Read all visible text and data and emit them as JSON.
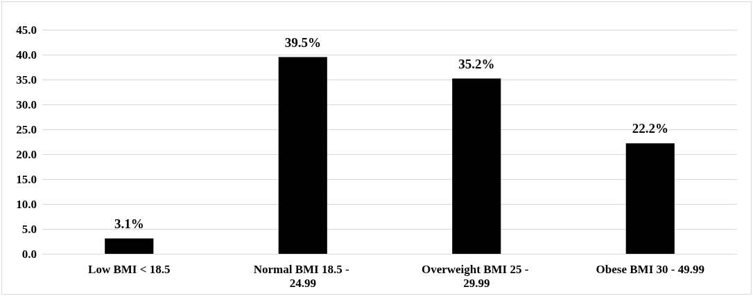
{
  "chart_data": {
    "type": "bar",
    "categories": [
      "Low BMI < 18.5",
      "Normal BMI 18.5 - 24.99",
      "Overweight BMI 25 - 29.99",
      "Obese BMI 30 - 49.99"
    ],
    "values": [
      3.1,
      39.5,
      35.2,
      22.2
    ],
    "value_labels": [
      "3.1%",
      "39.5%",
      "35.2%",
      "22.2%"
    ],
    "color": "#000000",
    "ylim": [
      0,
      45
    ],
    "yticks": [
      {
        "value": 0,
        "label": "0.0"
      },
      {
        "value": 5,
        "label": "5.0"
      },
      {
        "value": 10,
        "label": "10.0"
      },
      {
        "value": 15,
        "label": "15.0"
      },
      {
        "value": 20,
        "label": "20.0"
      },
      {
        "value": 25,
        "label": "25.0"
      },
      {
        "value": 30,
        "label": "30.0"
      },
      {
        "value": 35,
        "label": "35.0"
      },
      {
        "value": 40,
        "label": "40.0"
      },
      {
        "value": 45,
        "label": "45.0"
      }
    ],
    "grid": "y"
  }
}
